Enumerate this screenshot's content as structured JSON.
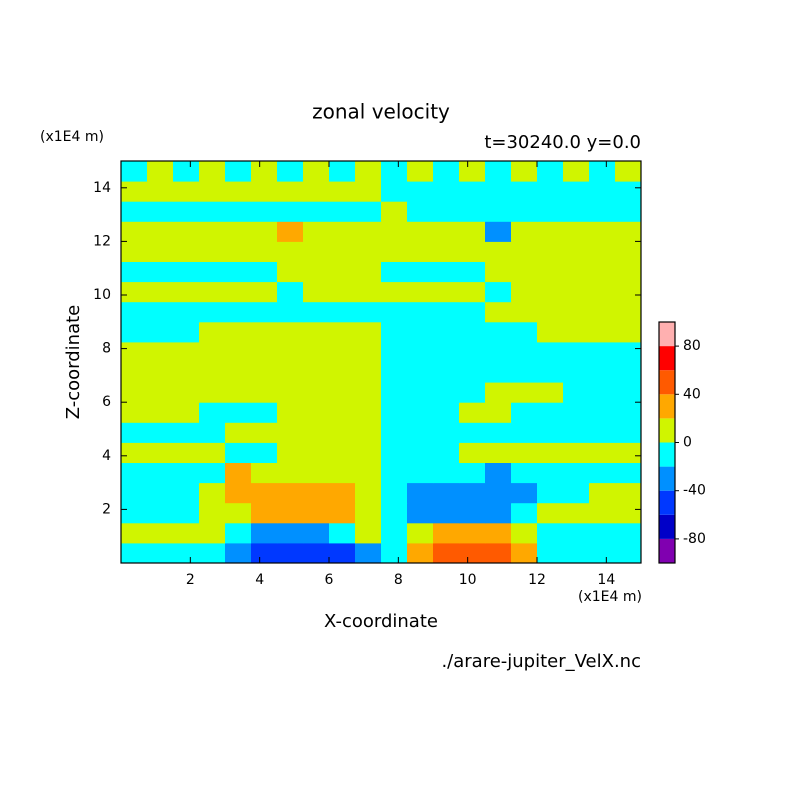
{
  "chart_data": {
    "type": "contour",
    "title": "zonal velocity",
    "subtitle": "t=30240.0 y=0.0",
    "x_label": "X-coordinate",
    "y_label": "Z-coordinate",
    "x_unit": "(x1E4 m)",
    "y_unit": "(x1E4 m)",
    "footer": "./arare-jupiter_VelX.nc",
    "xlim": [
      0,
      15
    ],
    "ylim": [
      0,
      15
    ],
    "xticks": [
      2,
      4,
      6,
      8,
      10,
      12,
      14
    ],
    "yticks": [
      2,
      4,
      6,
      8,
      10,
      12,
      14
    ],
    "x": [
      0.375,
      1.125,
      1.875,
      2.625,
      3.375,
      4.125,
      4.875,
      5.625,
      6.375,
      7.125,
      7.875,
      8.625,
      9.375,
      10.125,
      10.875,
      11.625,
      12.375,
      13.125,
      13.875,
      14.625
    ],
    "y": [
      0.375,
      1.125,
      1.875,
      2.625,
      3.375,
      4.125,
      4.875,
      5.625,
      6.375,
      7.125,
      7.875,
      8.625,
      9.375,
      10.125,
      10.875,
      11.625,
      12.375,
      13.125,
      13.875,
      14.625
    ],
    "values": [
      [
        -10,
        -10,
        -10,
        -10,
        -30,
        -50,
        -50,
        -50,
        -50,
        -30,
        -10,
        30,
        50,
        50,
        50,
        30,
        -10,
        -10,
        -10,
        -10
      ],
      [
        10,
        10,
        10,
        10,
        -10,
        -30,
        -30,
        -30,
        -10,
        10,
        -10,
        10,
        30,
        30,
        30,
        10,
        -10,
        -10,
        -10,
        -10
      ],
      [
        -10,
        -10,
        -10,
        10,
        10,
        30,
        30,
        30,
        30,
        10,
        -10,
        -30,
        -30,
        -30,
        -30,
        -10,
        10,
        10,
        10,
        10
      ],
      [
        -10,
        -10,
        -10,
        10,
        30,
        30,
        30,
        30,
        30,
        10,
        -10,
        -30,
        -30,
        -30,
        -30,
        -30,
        -10,
        -10,
        10,
        10
      ],
      [
        -10,
        -10,
        -10,
        -10,
        30,
        10,
        10,
        10,
        10,
        10,
        -10,
        -10,
        -10,
        -10,
        -30,
        -10,
        -10,
        -10,
        -10,
        -10
      ],
      [
        10,
        10,
        10,
        10,
        -10,
        -10,
        10,
        10,
        10,
        10,
        -10,
        -10,
        -10,
        10,
        10,
        10,
        10,
        10,
        10,
        10
      ],
      [
        -10,
        -10,
        -10,
        -10,
        10,
        10,
        10,
        10,
        10,
        10,
        -10,
        -10,
        -10,
        -10,
        -10,
        -10,
        -10,
        -10,
        -10,
        -10
      ],
      [
        10,
        10,
        10,
        -10,
        -10,
        -10,
        10,
        10,
        10,
        10,
        -10,
        -10,
        -10,
        10,
        10,
        -10,
        -10,
        -10,
        -10,
        -10
      ],
      [
        10,
        10,
        10,
        10,
        10,
        10,
        10,
        10,
        10,
        10,
        -10,
        -10,
        -10,
        -10,
        10,
        10,
        10,
        -10,
        -10,
        -10
      ],
      [
        10,
        10,
        10,
        10,
        10,
        10,
        10,
        10,
        10,
        10,
        -10,
        -10,
        -10,
        -10,
        -10,
        -10,
        -10,
        -10,
        -10,
        -10
      ],
      [
        10,
        10,
        10,
        10,
        10,
        10,
        10,
        10,
        10,
        10,
        -10,
        -10,
        -10,
        -10,
        -10,
        -10,
        -10,
        -10,
        -10,
        -10
      ],
      [
        -10,
        -10,
        -10,
        10,
        10,
        10,
        10,
        10,
        10,
        10,
        -10,
        -10,
        -10,
        -10,
        -10,
        -10,
        10,
        10,
        10,
        10
      ],
      [
        -10,
        -10,
        -10,
        -10,
        -10,
        -10,
        -10,
        -10,
        -10,
        -10,
        -10,
        -10,
        -10,
        -10,
        10,
        10,
        10,
        10,
        10,
        10
      ],
      [
        10,
        10,
        10,
        10,
        10,
        10,
        -10,
        10,
        10,
        10,
        10,
        10,
        10,
        10,
        -10,
        10,
        10,
        10,
        10,
        10
      ],
      [
        -10,
        -10,
        -10,
        -10,
        -10,
        -10,
        10,
        10,
        10,
        10,
        -10,
        -10,
        -10,
        -10,
        10,
        10,
        10,
        10,
        10,
        10
      ],
      [
        10,
        10,
        10,
        10,
        10,
        10,
        10,
        10,
        10,
        10,
        10,
        10,
        10,
        10,
        10,
        10,
        10,
        10,
        10,
        10
      ],
      [
        10,
        10,
        10,
        10,
        10,
        10,
        30,
        10,
        10,
        10,
        10,
        10,
        10,
        10,
        -30,
        10,
        10,
        10,
        10,
        10
      ],
      [
        -10,
        -10,
        -10,
        -10,
        -10,
        -10,
        -10,
        -10,
        -10,
        -10,
        10,
        -10,
        -10,
        -10,
        -10,
        -10,
        -10,
        -10,
        -10,
        -10
      ],
      [
        10,
        10,
        10,
        10,
        10,
        10,
        10,
        10,
        10,
        10,
        -10,
        -10,
        -10,
        -10,
        -10,
        -10,
        -10,
        -10,
        -10,
        -10
      ],
      [
        -10,
        10,
        -10,
        10,
        -10,
        10,
        -10,
        10,
        -10,
        10,
        -10,
        10,
        -10,
        10,
        -10,
        10,
        -10,
        10,
        -10,
        10
      ]
    ],
    "levels": [
      -100,
      -80,
      -60,
      -40,
      -20,
      0,
      20,
      40,
      60,
      80,
      100
    ],
    "colors": [
      "#8000b0",
      "#0000c8",
      "#0038ff",
      "#0090ff",
      "#00ffff",
      "#d0f500",
      "#ffa800",
      "#ff5a00",
      "#ff0000",
      "#ffb0b0"
    ],
    "colorbar_ticks": [
      -80,
      -40,
      0,
      40,
      80
    ]
  }
}
